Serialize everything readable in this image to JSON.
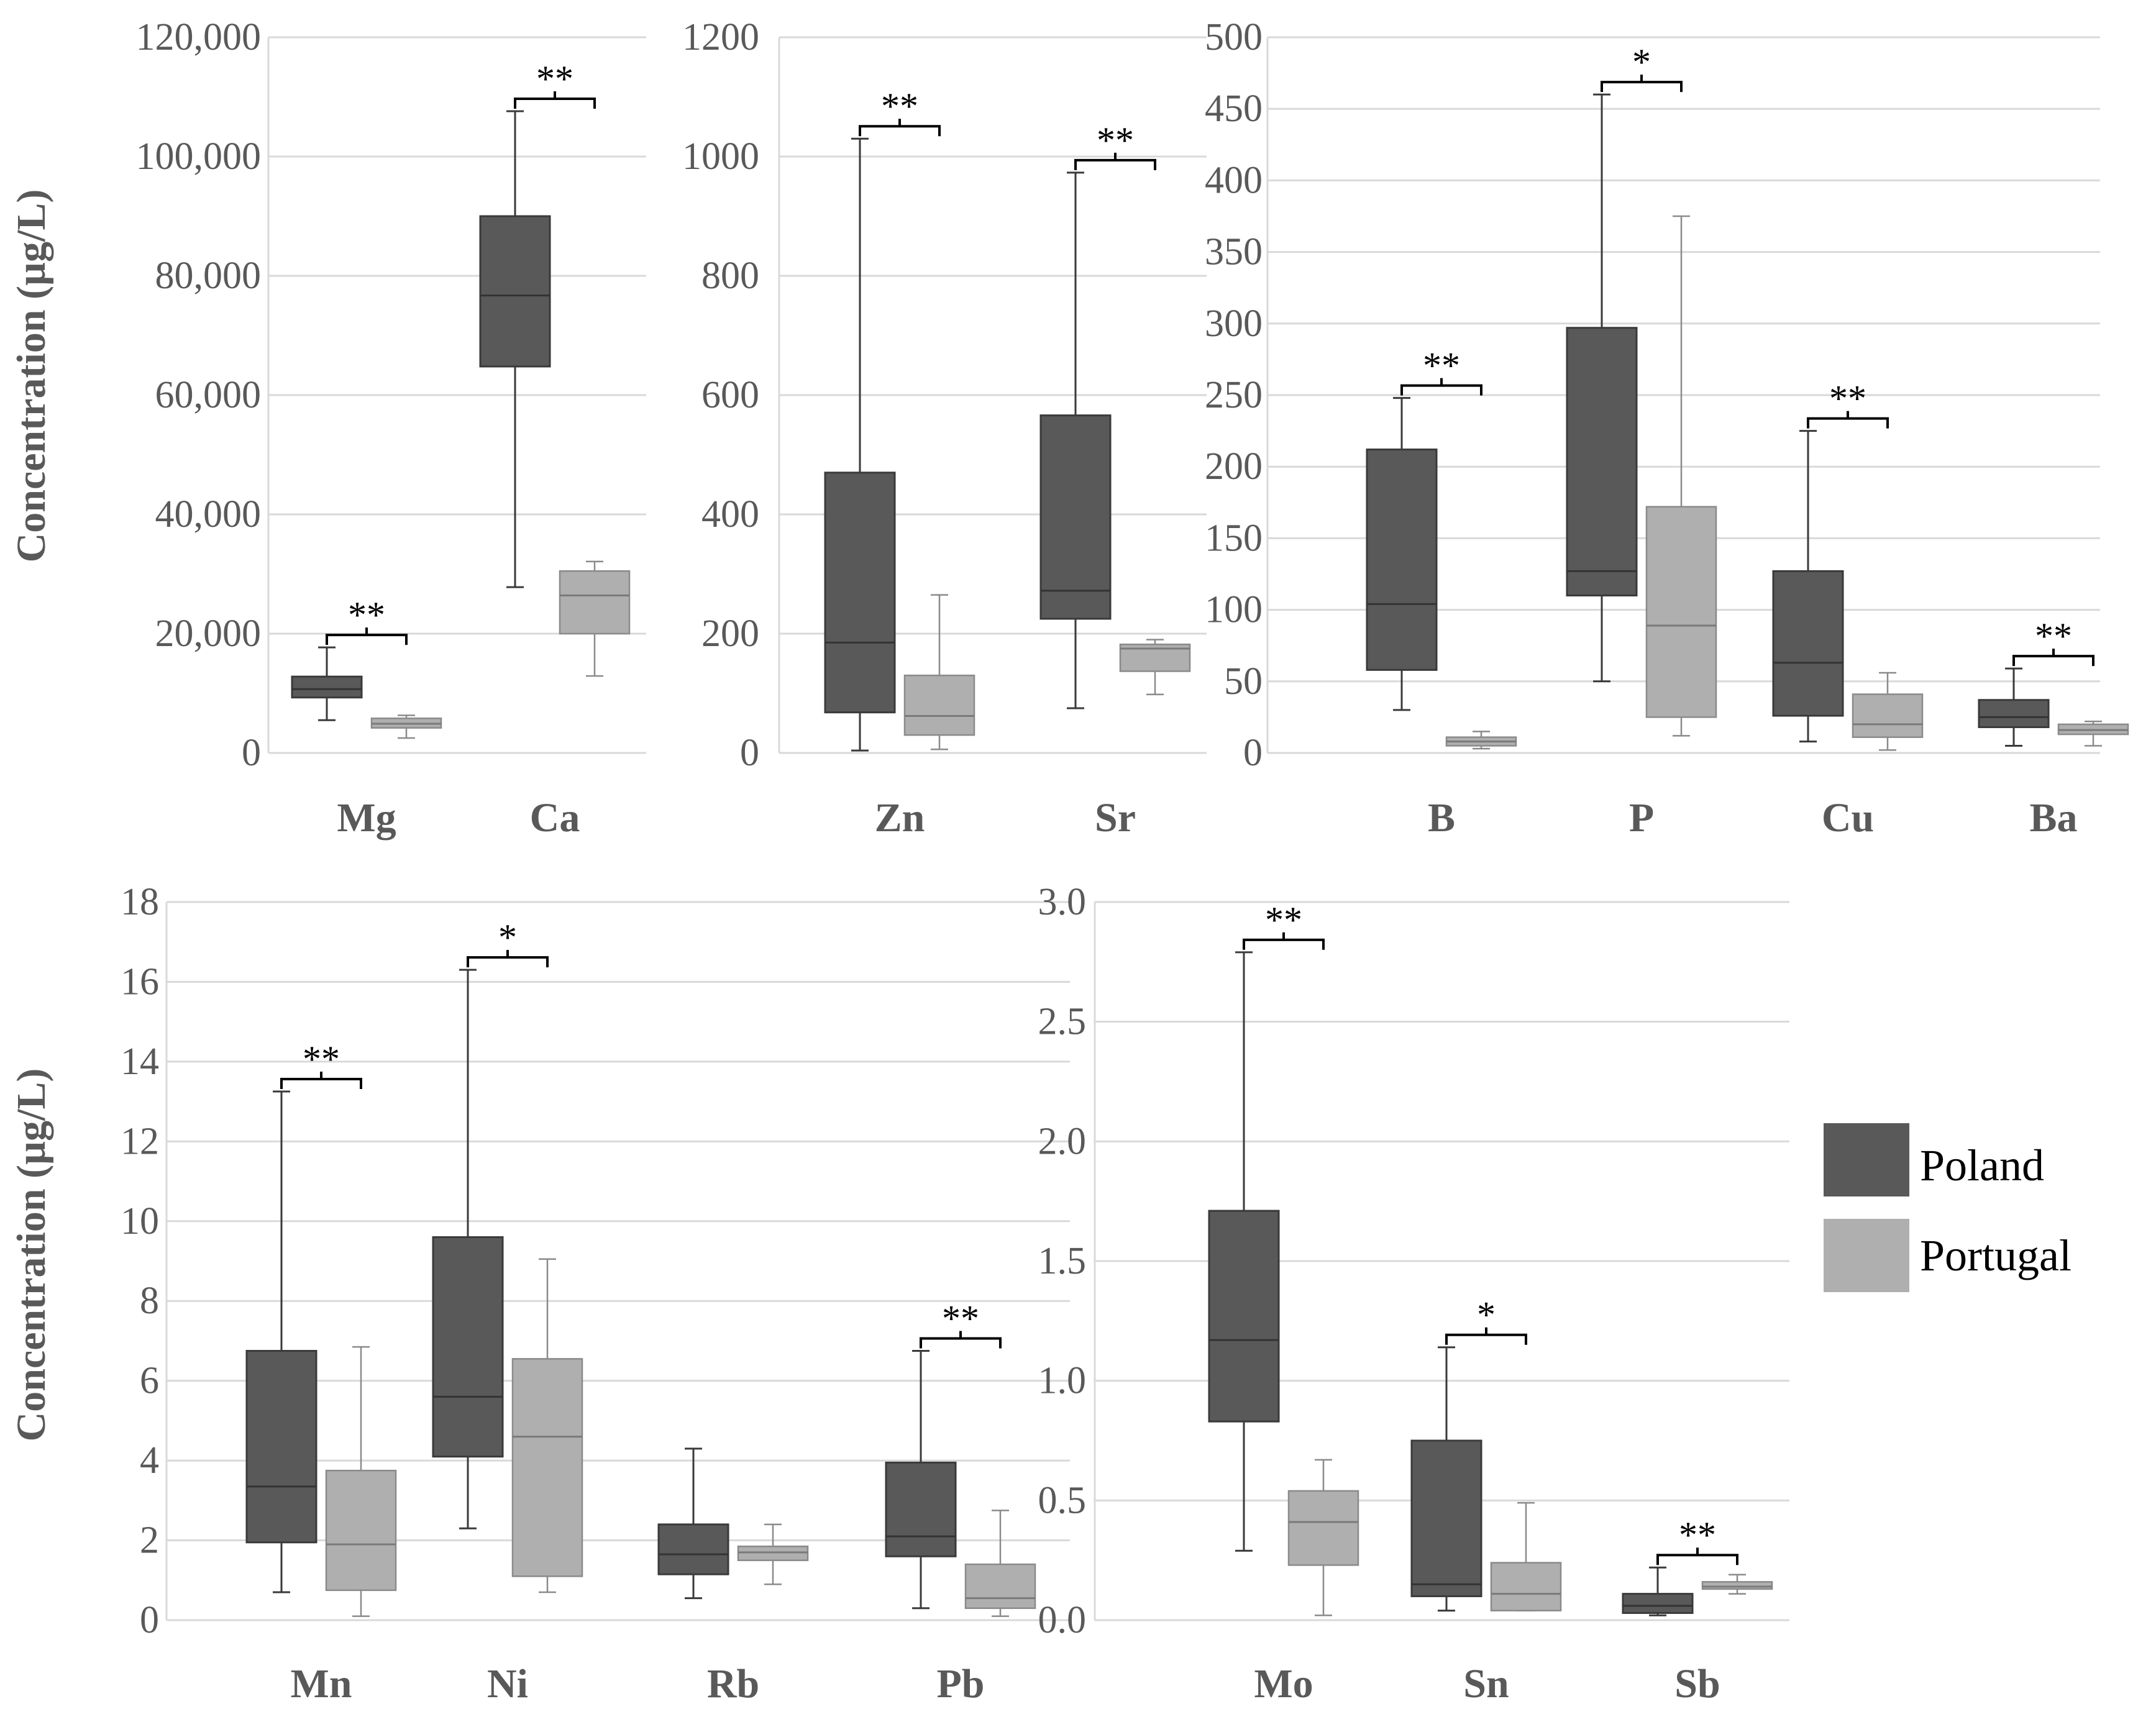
{
  "colors": {
    "poland_fill": "#595959",
    "poland_stroke": "#3a3a3a",
    "portugal_fill": "#afafaf",
    "portugal_stroke": "#8a8a8a",
    "grid": "#d9d9d9",
    "axis_text": "#595959"
  },
  "legend": {
    "poland_label": "Poland",
    "portugal_label": "Portugal"
  },
  "chart_data": [
    {
      "type": "box",
      "id": "mg-ca",
      "ylabel": "Concentration (µg/L)",
      "ylim": [
        0,
        120000
      ],
      "yticks": [
        "0",
        "20,000",
        "40,000",
        "60,000",
        "80,000",
        "100,000",
        "120,000"
      ],
      "ytick_values": [
        0,
        20000,
        40000,
        60000,
        80000,
        100000,
        120000
      ],
      "categories": [
        {
          "label": "Mg",
          "sig": "**",
          "poland": {
            "min": 5500,
            "q1": 9300,
            "median": 10700,
            "q3": 12800,
            "max": 17700
          },
          "portugal": {
            "min": 2500,
            "q1": 4200,
            "median": 4900,
            "q3": 5800,
            "max": 6300
          }
        },
        {
          "label": "Ca",
          "sig": "**",
          "poland": {
            "min": 27800,
            "q1": 64800,
            "median": 76700,
            "q3": 90000,
            "max": 107600
          },
          "portugal": {
            "min": 12900,
            "q1": 20000,
            "median": 26400,
            "q3": 30500,
            "max": 32100
          }
        }
      ]
    },
    {
      "type": "box",
      "id": "zn-sr",
      "ylim": [
        0,
        1200
      ],
      "yticks": [
        "0",
        "200",
        "400",
        "600",
        "800",
        "1000",
        "1200"
      ],
      "ytick_values": [
        0,
        200,
        400,
        600,
        800,
        1000,
        1200
      ],
      "categories": [
        {
          "label": "Zn",
          "sig": "**",
          "poland": {
            "min": 4,
            "q1": 68,
            "median": 185,
            "q3": 470,
            "max": 1030
          },
          "portugal": {
            "min": 6,
            "q1": 30,
            "median": 62,
            "q3": 130,
            "max": 265
          }
        },
        {
          "label": "Sr",
          "sig": "**",
          "poland": {
            "min": 75,
            "q1": 225,
            "median": 272,
            "q3": 566,
            "max": 973
          },
          "portugal": {
            "min": 98,
            "q1": 137,
            "median": 175,
            "q3": 182,
            "max": 190
          }
        }
      ]
    },
    {
      "type": "box",
      "id": "b-p-cu-ba",
      "ylim": [
        0,
        500
      ],
      "yticks": [
        "0",
        "50",
        "100",
        "150",
        "200",
        "250",
        "300",
        "350",
        "400",
        "450",
        "500"
      ],
      "ytick_values": [
        0,
        50,
        100,
        150,
        200,
        250,
        300,
        350,
        400,
        450,
        500
      ],
      "categories": [
        {
          "label": "B",
          "sig": "**",
          "poland": {
            "min": 30,
            "q1": 58,
            "median": 104,
            "q3": 212,
            "max": 248
          },
          "portugal": {
            "min": 3,
            "q1": 5,
            "median": 8,
            "q3": 11,
            "max": 15
          }
        },
        {
          "label": "P",
          "sig": "*",
          "poland": {
            "min": 50,
            "q1": 110,
            "median": 127,
            "q3": 297,
            "max": 460
          },
          "portugal": {
            "min": 12,
            "q1": 25,
            "median": 89,
            "q3": 172,
            "max": 375
          }
        },
        {
          "label": "Cu",
          "sig": "**",
          "poland": {
            "min": 8,
            "q1": 26,
            "median": 63,
            "q3": 127,
            "max": 225
          },
          "portugal": {
            "min": 2,
            "q1": 11,
            "median": 20,
            "q3": 41,
            "max": 56
          }
        },
        {
          "label": "Ba",
          "sig": "**",
          "poland": {
            "min": 5,
            "q1": 18,
            "median": 25,
            "q3": 37,
            "max": 59
          },
          "portugal": {
            "min": 5,
            "q1": 13,
            "median": 16,
            "q3": 20,
            "max": 22
          }
        }
      ]
    },
    {
      "type": "box",
      "id": "mn-ni-rb-pb",
      "ylabel": "Concentration (µg/L)",
      "ylim": [
        0,
        18
      ],
      "yticks": [
        "0",
        "2",
        "4",
        "6",
        "8",
        "10",
        "12",
        "14",
        "16",
        "18"
      ],
      "ytick_values": [
        0,
        2,
        4,
        6,
        8,
        10,
        12,
        14,
        16,
        18
      ],
      "categories": [
        {
          "label": "Mn",
          "sig": "**",
          "poland": {
            "min": 0.7,
            "q1": 1.95,
            "median": 3.35,
            "q3": 6.75,
            "max": 13.25
          },
          "portugal": {
            "min": 0.1,
            "q1": 0.75,
            "median": 1.9,
            "q3": 3.75,
            "max": 6.85
          }
        },
        {
          "label": "Ni",
          "sig": "*",
          "poland": {
            "min": 2.3,
            "q1": 4.1,
            "median": 5.6,
            "q3": 9.6,
            "max": 16.3
          },
          "portugal": {
            "min": 0.7,
            "q1": 1.1,
            "median": 4.6,
            "q3": 6.55,
            "max": 9.05
          }
        },
        {
          "label": "Rb",
          "sig": "",
          "poland": {
            "min": 0.55,
            "q1": 1.15,
            "median": 1.65,
            "q3": 2.4,
            "max": 4.3
          },
          "portugal": {
            "min": 0.9,
            "q1": 1.5,
            "median": 1.7,
            "q3": 1.85,
            "max": 2.4
          }
        },
        {
          "label": "Pb",
          "sig": "**",
          "poland": {
            "min": 0.3,
            "q1": 1.6,
            "median": 2.1,
            "q3": 3.95,
            "max": 6.75
          },
          "portugal": {
            "min": 0.1,
            "q1": 0.3,
            "median": 0.55,
            "q3": 1.4,
            "max": 2.75
          }
        }
      ]
    },
    {
      "type": "box",
      "id": "mo-sn-sb",
      "ylim": [
        0,
        3.0
      ],
      "yticks": [
        "0.0",
        "0.5",
        "1.0",
        "1.5",
        "2.0",
        "2.5",
        "3.0"
      ],
      "ytick_values": [
        0,
        0.5,
        1.0,
        1.5,
        2.0,
        2.5,
        3.0
      ],
      "categories": [
        {
          "label": "Mo",
          "sig": "**",
          "poland": {
            "min": 0.29,
            "q1": 0.83,
            "median": 1.17,
            "q3": 1.71,
            "max": 2.79
          },
          "portugal": {
            "min": 0.02,
            "q1": 0.23,
            "median": 0.41,
            "q3": 0.54,
            "max": 0.67
          }
        },
        {
          "label": "Sn",
          "sig": "*",
          "poland": {
            "min": 0.04,
            "q1": 0.1,
            "median": 0.15,
            "q3": 0.75,
            "max": 1.14
          },
          "portugal": {
            "min": 0.04,
            "q1": 0.04,
            "median": 0.11,
            "q3": 0.24,
            "max": 0.49
          }
        },
        {
          "label": "Sb",
          "sig": "**",
          "poland": {
            "min": 0.02,
            "q1": 0.03,
            "median": 0.06,
            "q3": 0.11,
            "max": 0.22
          },
          "portugal": {
            "min": 0.11,
            "q1": 0.13,
            "median": 0.14,
            "q3": 0.16,
            "max": 0.19
          }
        }
      ]
    }
  ]
}
